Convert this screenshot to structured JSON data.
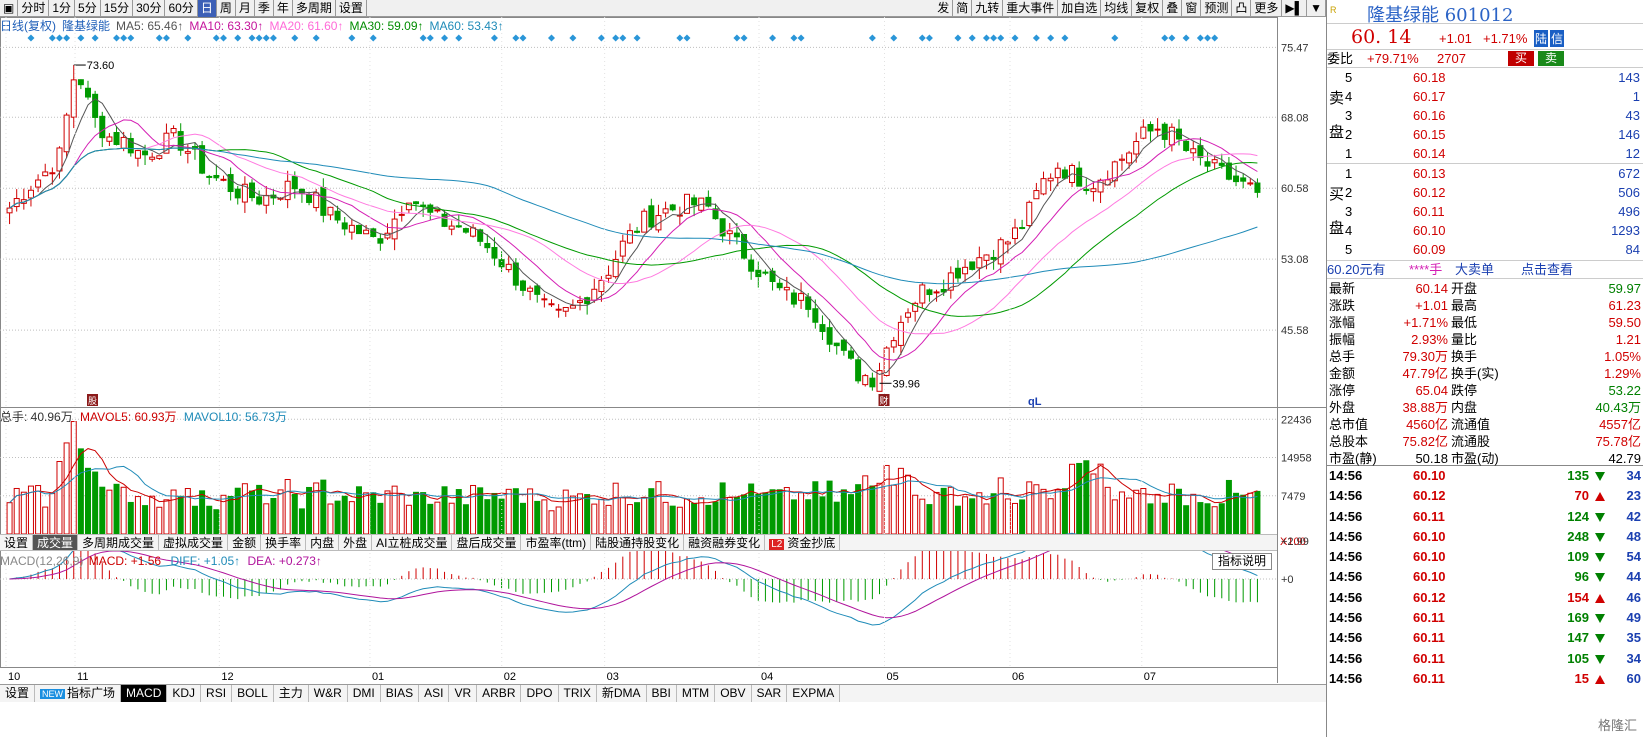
{
  "toolbar": {
    "left_buttons": [
      "分时",
      "1分",
      "5分",
      "15分",
      "30分",
      "60分",
      "日",
      "周",
      "月",
      "季",
      "年",
      "多周期",
      "设置"
    ],
    "active_index": 6,
    "right_buttons": [
      "发",
      "简",
      "九转",
      "重大事件",
      "加自选",
      "均线",
      "复权",
      "叠",
      "窗",
      "预测",
      "凸",
      "更多"
    ]
  },
  "ma_legend": {
    "prefix": "日线(复权)",
    "name": "隆基绿能",
    "ma5": "MA5: 65.46↑",
    "ma10": "MA10: 63.30↑",
    "ma20": "MA20: 61.60↑",
    "ma30": "MA30: 59.09↑",
    "ma60": "MA60: 53.43↑"
  },
  "colors": {
    "up": "#d00000",
    "down": "#009a00",
    "ma5": "#555555",
    "ma10": "#d41fb4",
    "ma20": "#ff7ae0",
    "ma30": "#009a00",
    "ma60": "#1f8bb8",
    "grid": "#bfbfbf",
    "diamond": "#2a96d8"
  },
  "price_axis": [
    "75.47",
    "68.08",
    "60.58",
    "53.08",
    "45.58"
  ],
  "annotations": {
    "high": "73.60",
    "low": "39.96",
    "ql": "qL",
    "marker_a": "股",
    "marker_b": "财"
  },
  "volume": {
    "legend_total": "总手: 40.96万",
    "legend_mavol5": "MAVOL5: 60.93万",
    "legend_mavol10": "MAVOL10: 56.73万",
    "axis": [
      "22436",
      "14958",
      "7479"
    ],
    "unit": "X100"
  },
  "volume_tabs": [
    "设置",
    "成交量",
    "多周期成交量",
    "虚拟成交量",
    "金额",
    "换手率",
    "内盘",
    "外盘",
    "AI立桩成交量",
    "盘后成交量",
    "市盈率(ttm)",
    "陆股通持股变化",
    "融资融券变化",
    "资金抄底"
  ],
  "volume_tab_active": 1,
  "macd": {
    "legend_name": "MACD(12,26,9)",
    "legend_macd": "MACD: +1.56",
    "legend_diff": "DIFF: +1.05↑",
    "legend_dea": "DEA: +0.273↑",
    "axis_top": "+2.99",
    "axis_zero": "+0",
    "explain_button": "指标说明"
  },
  "x_months": [
    "10",
    "11",
    "12",
    "01",
    "02",
    "03",
    "04",
    "05",
    "06",
    "07"
  ],
  "bottom_tabs": [
    "设置",
    "指标广场",
    "MACD",
    "KDJ",
    "RSI",
    "BOLL",
    "主力",
    "W&R",
    "DMI",
    "BIAS",
    "ASI",
    "VR",
    "ARBR",
    "DPO",
    "TRIX",
    "新DMA",
    "BBI",
    "MTM",
    "OBV",
    "SAR",
    "EXPMA"
  ],
  "bottom_tab_new_badge": "NEW",
  "bottom_tab_active": 2,
  "right_panel": {
    "r_badge": "R",
    "stock_name": "隆基绿能 601012",
    "price": "60. 14",
    "change": "+1.01",
    "change_pct": "+1.71%",
    "tag": "陆",
    "tag2": "信",
    "weibi_label": "委比",
    "weibi_value": "+79.71%",
    "weicha": "2707",
    "buy_btn": "买",
    "sell_btn": "卖",
    "sell_side": "卖盘",
    "buy_side": "买盘",
    "sell_orders": [
      {
        "level": "5",
        "price": "60.18",
        "vol": "143"
      },
      {
        "level": "4",
        "price": "60.17",
        "vol": "1"
      },
      {
        "level": "3",
        "price": "60.16",
        "vol": "43"
      },
      {
        "level": "2",
        "price": "60.15",
        "vol": "146"
      },
      {
        "level": "1",
        "price": "60.14",
        "vol": "12"
      }
    ],
    "buy_orders": [
      {
        "level": "1",
        "price": "60.13",
        "vol": "672"
      },
      {
        "level": "2",
        "price": "60.12",
        "vol": "506"
      },
      {
        "level": "3",
        "price": "60.11",
        "vol": "496"
      },
      {
        "level": "4",
        "price": "60.10",
        "vol": "1293"
      },
      {
        "level": "5",
        "price": "60.09",
        "vol": "84"
      }
    ],
    "big_order_bar": {
      "a": "60.20元有",
      "b": "****手",
      "c": "大卖单",
      "d": "点击查看"
    },
    "stats": [
      {
        "l1": "最新",
        "v1": "60.14",
        "c1": "up",
        "l2": "开盘",
        "v2": "59.97",
        "c2": "dn"
      },
      {
        "l1": "涨跌",
        "v1": "+1.01",
        "c1": "up",
        "l2": "最高",
        "v2": "61.23",
        "c2": "up"
      },
      {
        "l1": "涨幅",
        "v1": "+1.71%",
        "c1": "up",
        "l2": "最低",
        "v2": "59.50",
        "c2": "up"
      },
      {
        "l1": "振幅",
        "v1": "2.93%",
        "c1": "up",
        "l2": "量比",
        "v2": "1.21",
        "c2": "up"
      },
      {
        "l1": "总手",
        "v1": "79.30万",
        "c1": "up",
        "l2": "换手",
        "v2": "1.05%",
        "c2": "up"
      },
      {
        "l1": "金额",
        "v1": "47.79亿",
        "c1": "up",
        "l2": "换手(实)",
        "v2": "1.29%",
        "c2": "up"
      },
      {
        "l1": "涨停",
        "v1": "65.04",
        "c1": "up",
        "l2": "跌停",
        "v2": "53.22",
        "c2": "dn"
      },
      {
        "l1": "外盘",
        "v1": "38.88万",
        "c1": "up",
        "l2": "内盘",
        "v2": "40.43万",
        "c2": "dn"
      },
      {
        "l1": "总市值",
        "v1": "4560亿",
        "c1": "up",
        "l2": "流通值",
        "v2": "4557亿",
        "c2": "up"
      },
      {
        "l1": "总股本",
        "v1": "75.82亿",
        "c1": "up",
        "l2": "流通股",
        "v2": "75.78亿",
        "c2": "up"
      },
      {
        "l1": "市盈(静)",
        "v1": "50.18",
        "c1": "blk",
        "l2": "市盈(动)",
        "v2": "42.79",
        "c2": "blk"
      }
    ],
    "ticks": [
      {
        "t": "14:56",
        "p": "60.10",
        "v": "135",
        "d": "dn",
        "n": "34"
      },
      {
        "t": "14:56",
        "p": "60.12",
        "v": "70",
        "d": "up",
        "n": "23"
      },
      {
        "t": "14:56",
        "p": "60.11",
        "v": "124",
        "d": "dn",
        "n": "42"
      },
      {
        "t": "14:56",
        "p": "60.10",
        "v": "248",
        "d": "dn",
        "n": "48"
      },
      {
        "t": "14:56",
        "p": "60.10",
        "v": "109",
        "d": "dn",
        "n": "54"
      },
      {
        "t": "14:56",
        "p": "60.10",
        "v": "96",
        "d": "dn",
        "n": "44"
      },
      {
        "t": "14:56",
        "p": "60.12",
        "v": "154",
        "d": "up",
        "n": "46"
      },
      {
        "t": "14:56",
        "p": "60.11",
        "v": "169",
        "d": "dn",
        "n": "49"
      },
      {
        "t": "14:56",
        "p": "60.11",
        "v": "147",
        "d": "dn",
        "n": "35"
      },
      {
        "t": "14:56",
        "p": "60.11",
        "v": "105",
        "d": "dn",
        "n": "34"
      },
      {
        "t": "14:56",
        "p": "60.11",
        "v": "15",
        "d": "up",
        "n": "60"
      }
    ],
    "watermark": "格隆汇"
  },
  "chart_data": {
    "type": "candlestick",
    "price_range": [
      39.96,
      75.47
    ],
    "high_marker": 73.6,
    "low_marker": 39.96,
    "latest": 60.14,
    "approx_close_path": [
      58.5,
      60.5,
      62,
      64,
      73.6,
      68,
      66,
      65.5,
      64,
      65,
      66,
      64,
      62,
      61,
      60,
      59.5,
      60,
      61,
      60,
      58,
      57,
      56,
      55,
      57,
      60,
      58,
      57,
      56.5,
      55.5,
      54,
      52,
      50,
      48,
      47,
      48,
      50,
      52,
      55,
      57,
      58,
      58.5,
      59,
      58.5,
      56,
      54,
      52,
      50,
      49,
      48.5,
      46,
      43,
      41,
      40.5,
      45,
      48,
      50,
      50.5,
      52,
      53,
      54,
      55,
      57,
      61,
      63,
      62,
      61,
      62.5,
      64,
      66,
      67,
      66,
      64,
      63,
      62,
      61,
      60.14
    ],
    "months": [
      "10",
      "11",
      "12",
      "01",
      "02",
      "03",
      "04",
      "05",
      "06",
      "07"
    ]
  }
}
